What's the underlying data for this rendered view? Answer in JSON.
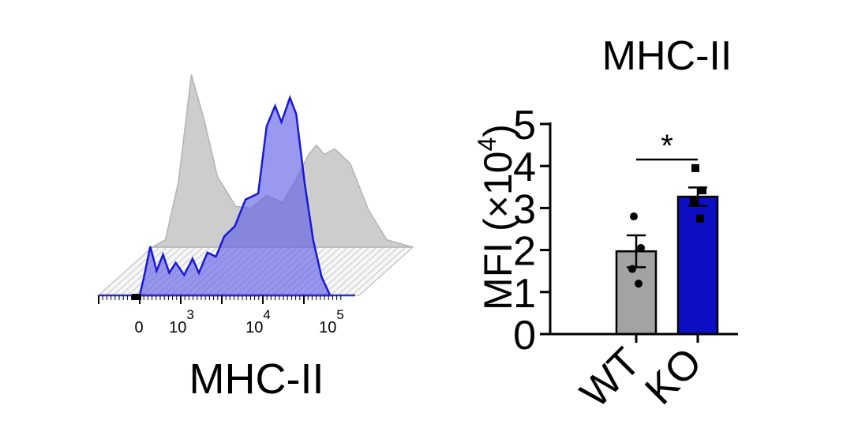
{
  "chart_data": [
    {
      "type": "area",
      "title": "",
      "xlabel": "MHC-II",
      "ylabel": "",
      "x_scale": "log",
      "x_ticks": [
        {
          "label": "0",
          "exp": ""
        },
        {
          "label": "10",
          "exp": "3"
        },
        {
          "label": "10",
          "exp": "4"
        },
        {
          "label": "10",
          "exp": "5"
        }
      ],
      "series": [
        {
          "color": "#c8c8c8",
          "profile": [
            [
              0,
              0
            ],
            [
              0.05,
              0.04
            ],
            [
              0.1,
              0.35
            ],
            [
              0.15,
              0.93
            ],
            [
              0.2,
              0.68
            ],
            [
              0.25,
              0.38
            ],
            [
              0.32,
              0.22
            ],
            [
              0.38,
              0.21
            ],
            [
              0.44,
              0.28
            ],
            [
              0.5,
              0.24
            ],
            [
              0.55,
              0.36
            ],
            [
              0.6,
              0.5
            ],
            [
              0.63,
              0.55
            ],
            [
              0.66,
              0.5
            ],
            [
              0.7,
              0.53
            ],
            [
              0.76,
              0.45
            ],
            [
              0.83,
              0.2
            ],
            [
              0.9,
              0.04
            ],
            [
              1,
              0
            ]
          ]
        },
        {
          "color": "#5a5ae6",
          "profile": [
            [
              0,
              0
            ],
            [
              0.02,
              0.09
            ],
            [
              0.05,
              0.24
            ],
            [
              0.08,
              0.12
            ],
            [
              0.11,
              0.2
            ],
            [
              0.14,
              0.11
            ],
            [
              0.17,
              0.16
            ],
            [
              0.21,
              0.1
            ],
            [
              0.25,
              0.18
            ],
            [
              0.28,
              0.11
            ],
            [
              0.32,
              0.21
            ],
            [
              0.36,
              0.19
            ],
            [
              0.4,
              0.29
            ],
            [
              0.45,
              0.34
            ],
            [
              0.5,
              0.47
            ],
            [
              0.56,
              0.5
            ],
            [
              0.6,
              0.83
            ],
            [
              0.64,
              0.93
            ],
            [
              0.67,
              0.85
            ],
            [
              0.71,
              0.97
            ],
            [
              0.74,
              0.89
            ],
            [
              0.78,
              0.55
            ],
            [
              0.82,
              0.27
            ],
            [
              0.86,
              0.09
            ],
            [
              0.9,
              0
            ]
          ]
        }
      ]
    },
    {
      "type": "bar",
      "title": "MHC-II",
      "xlabel": "",
      "ylabel": "MFI (×10",
      "ylabel_exp": "4",
      "ylabel_close": ")",
      "ylim": [
        0,
        5
      ],
      "yticks": [
        0,
        1,
        2,
        3,
        4,
        5
      ],
      "categories": [
        "WT",
        "KO"
      ],
      "values": [
        1.97,
        3.27
      ],
      "errors": [
        0.38,
        0.22
      ],
      "colors": [
        "#a3a3a3",
        "#0d0dc4"
      ],
      "points": [
        [
          2.8,
          2.05,
          1.55,
          1.2
        ],
        [
          3.95,
          3.42,
          3.15,
          2.75
        ]
      ],
      "point_markers": [
        "circle",
        "square"
      ],
      "significance": "*"
    }
  ]
}
